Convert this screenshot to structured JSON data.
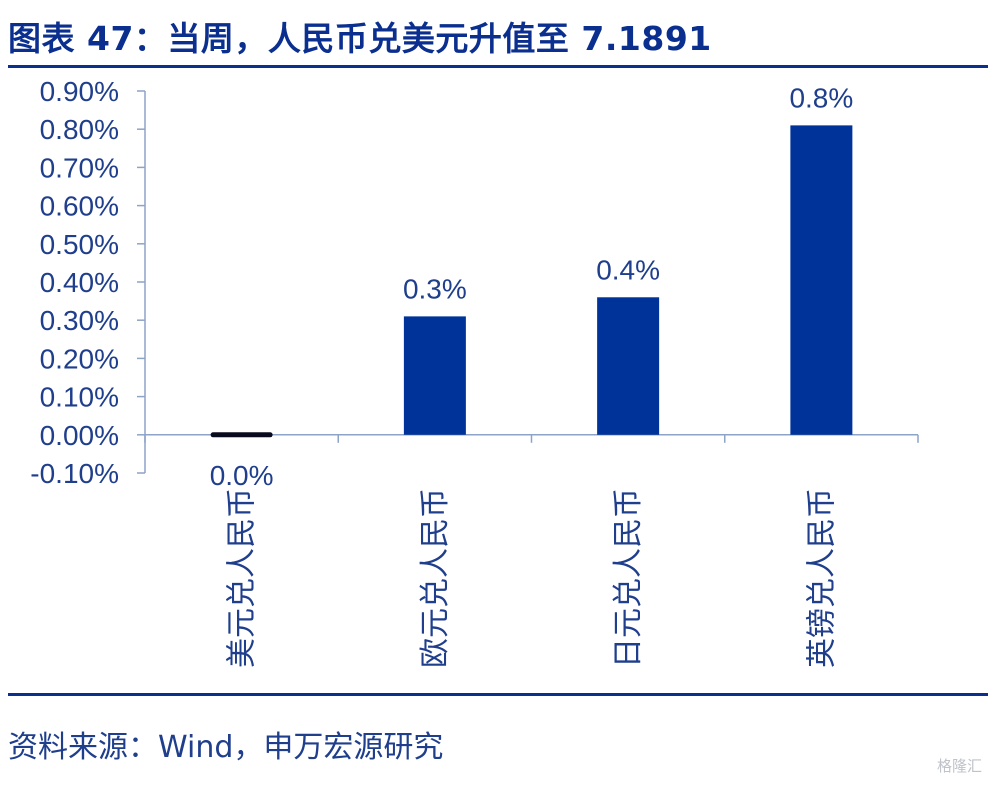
{
  "title": "图表 47：当周，人民币兑美元升值至 7.1891",
  "source": "资料来源：Wind，申万宏源研究",
  "watermark": "格隆汇",
  "colors": {
    "bar": "#003399",
    "title": "#0B2F8F",
    "axis_text": "#1F3E8C",
    "axis_line": "#8EA3C8"
  },
  "chart_data": {
    "type": "bar",
    "categories": [
      "美元兑人民币",
      "欧元兑人民币",
      "日元兑人民币",
      "英镑兑人民币"
    ],
    "values": [
      0.0,
      0.31,
      0.36,
      0.81
    ],
    "data_labels": [
      "0.0%",
      "0.3%",
      "0.4%",
      "0.8%"
    ],
    "ylim": [
      -0.1,
      0.9
    ],
    "y_ticks": [
      -0.1,
      0.0,
      0.1,
      0.2,
      0.3,
      0.4,
      0.5,
      0.6,
      0.7,
      0.8,
      0.9
    ],
    "y_tick_labels": [
      "-0.10%",
      "0.00%",
      "0.10%",
      "0.20%",
      "0.30%",
      "0.40%",
      "0.50%",
      "0.60%",
      "0.70%",
      "0.80%",
      "0.90%"
    ],
    "grid": false,
    "legend": "none"
  }
}
